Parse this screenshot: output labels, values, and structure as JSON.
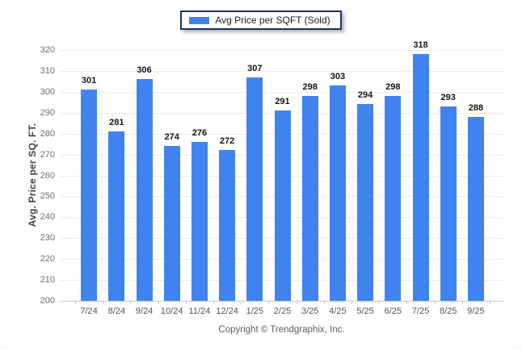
{
  "legend": {
    "items": [
      {
        "label": "Avg Price per SQFT (Sold)",
        "swatch_color": "#4183ee"
      }
    ]
  },
  "y_axis": {
    "title": "Avg. Price per SQ. FT.",
    "tick_labels": [
      "200",
      "210",
      "220",
      "230",
      "240",
      "250",
      "260",
      "270",
      "280",
      "290",
      "300",
      "310",
      "320"
    ]
  },
  "footer": {
    "copyright": "Copyright © Trendgraphix, Inc."
  },
  "colors": {
    "bar": "#4183ee",
    "legend_border": "#17375e",
    "gridline": "#e9eaec",
    "axis_line": "#c6c8cc",
    "background_edge": "#d9e4f2"
  },
  "chart_data": {
    "type": "bar",
    "title": "",
    "categories": [
      "7/24",
      "8/24",
      "9/24",
      "10/24",
      "11/24",
      "12/24",
      "1/25",
      "2/25",
      "3/25",
      "4/25",
      "5/25",
      "6/25",
      "7/25",
      "8/25",
      "9/25"
    ],
    "series": [
      {
        "name": "Avg Price per SQFT (Sold)",
        "color": "#4183ee",
        "values": [
          301,
          281,
          306,
          274,
          276,
          272,
          307,
          291,
          298,
          303,
          294,
          298,
          318,
          293,
          288
        ]
      }
    ],
    "xlabel": "",
    "ylabel": "Avg. Price per SQ. FT.",
    "ylim": [
      200,
      320
    ],
    "ytick_step": 10,
    "grid": true,
    "value_labels": true,
    "legend_position": "top-center"
  }
}
